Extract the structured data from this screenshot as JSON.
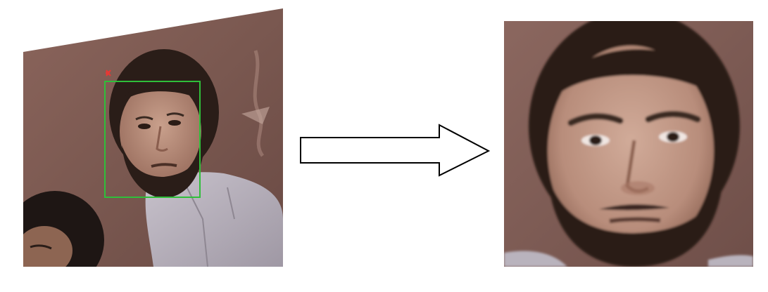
{
  "figure": {
    "source_image": {
      "subject": "group-photo-with-detected-face",
      "detection_box": {
        "color": "#2fbf3a"
      },
      "landmark_marker": {
        "color": "#e53935"
      }
    },
    "arrow": {
      "direction": "right",
      "style": "outlined"
    },
    "output_image": {
      "subject": "cropped-aligned-face"
    }
  },
  "palette": {
    "background": "#ffffff",
    "wall_brown": "#7b5850",
    "skin": "#b98c78",
    "hair": "#2a1d18",
    "shirt": "#b9b3bd",
    "detection_green": "#2fbf3a",
    "marker_red": "#e53935"
  }
}
